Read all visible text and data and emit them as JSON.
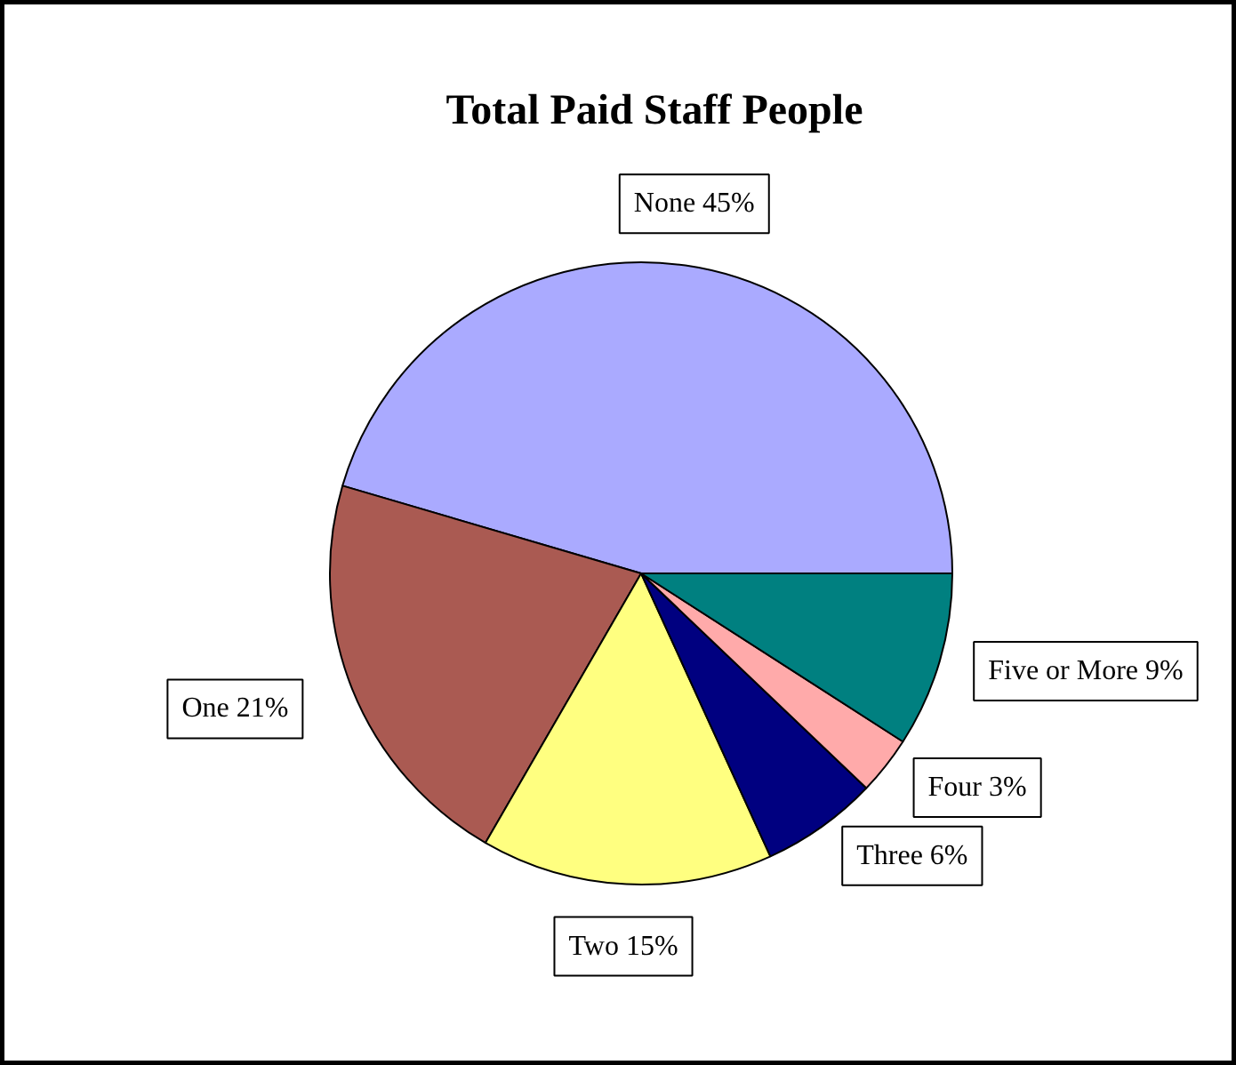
{
  "chart_data": {
    "type": "pie",
    "title": "Total Paid Staff People",
    "categories": [
      "None",
      "One",
      "Two",
      "Three",
      "Four",
      "Five or More"
    ],
    "values": [
      45,
      21,
      15,
      6,
      3,
      9
    ],
    "colors": [
      "#aaaaff",
      "#aa5a52",
      "#ffff80",
      "#000080",
      "#ffaaaa",
      "#008080"
    ],
    "value_labels": [
      "45%",
      "21%",
      "15%",
      "6%",
      "3%",
      "9%"
    ]
  }
}
